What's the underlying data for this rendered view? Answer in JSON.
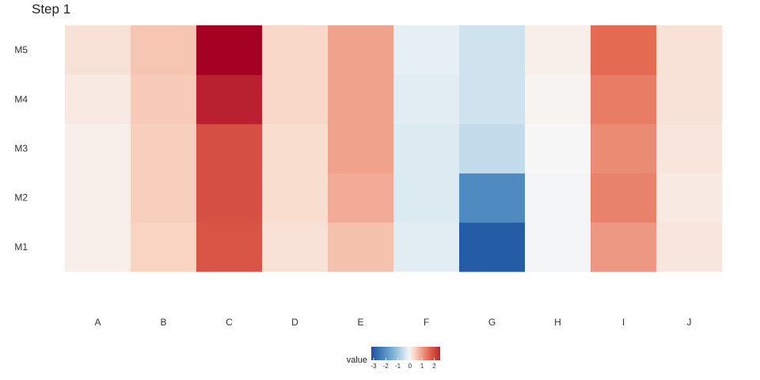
{
  "chart_data": {
    "type": "heatmap",
    "title": "Step 1",
    "x_categories": [
      "A",
      "B",
      "C",
      "D",
      "E",
      "F",
      "G",
      "H",
      "I",
      "J"
    ],
    "y_categories": [
      "M1",
      "M2",
      "M3",
      "M4",
      "M5"
    ],
    "values": [
      [
        0.1,
        0.4,
        1.85,
        0.25,
        0.6,
        -0.25,
        -3.0,
        -0.05,
        1.05,
        0.2
      ],
      [
        0.1,
        0.45,
        1.9,
        0.3,
        0.85,
        -0.3,
        -2.15,
        -0.05,
        1.3,
        0.15
      ],
      [
        0.1,
        0.45,
        1.9,
        0.3,
        0.95,
        -0.3,
        -0.6,
        0.0,
        1.2,
        0.2
      ],
      [
        0.15,
        0.5,
        2.55,
        0.35,
        0.95,
        -0.25,
        -0.45,
        0.05,
        1.35,
        0.25
      ],
      [
        0.25,
        0.55,
        3.0,
        0.35,
        0.95,
        -0.2,
        -0.45,
        0.1,
        1.55,
        0.25
      ]
    ],
    "legend": {
      "title": "value",
      "ticks": [
        -3,
        -2,
        -1,
        0,
        1,
        2
      ],
      "range": [
        -3.2,
        2.5
      ],
      "colors": {
        "low": "#1b51a0",
        "mid_low": "#6aa8d0",
        "near_mid_low": "#d3e6f0",
        "mid": "#f7f7f7",
        "near_mid_high": "#f9d4c2",
        "mid_high": "#e3664c",
        "high": "#a50122"
      }
    },
    "legend_position": "bottom",
    "grid": false
  }
}
